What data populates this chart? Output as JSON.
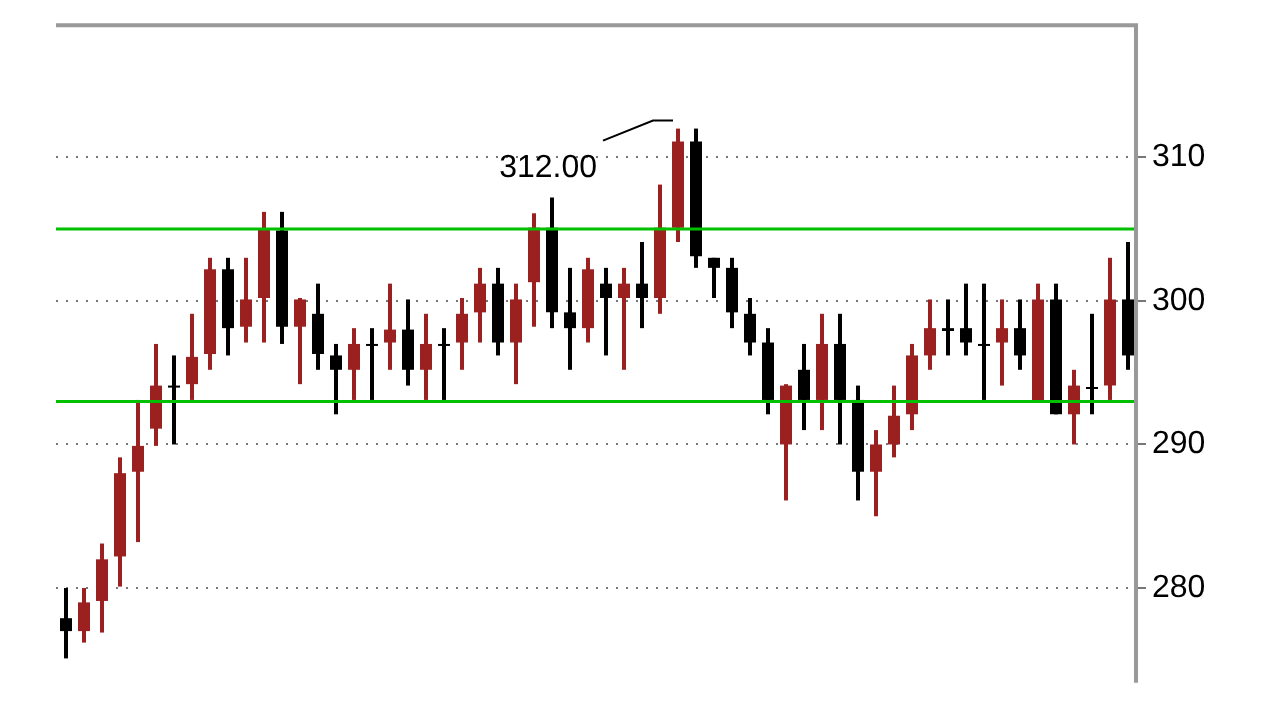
{
  "chart_data": {
    "type": "candlestick",
    "categories": [
      null,
      null,
      null,
      null,
      null,
      null,
      null,
      null,
      null,
      null,
      null,
      null,
      null,
      null,
      null,
      null,
      null,
      null,
      null,
      null,
      null,
      null,
      null,
      null,
      null,
      null,
      null,
      null,
      null,
      null,
      null,
      null,
      null,
      null,
      null,
      null,
      null,
      null,
      null,
      null,
      null,
      null,
      null,
      null,
      null,
      null,
      null,
      null,
      null,
      null,
      null,
      null,
      null,
      null,
      null,
      null,
      null,
      null,
      null,
      null
    ],
    "ohlc": [
      [
        277.9,
        280.0,
        275.1,
        277.0
      ],
      [
        277.0,
        280.0,
        276.2,
        279.0
      ],
      [
        279.1,
        283.1,
        276.9,
        282.0
      ],
      [
        282.2,
        289.1,
        280.1,
        288.0
      ],
      [
        288.1,
        293.1,
        283.2,
        289.9
      ],
      [
        291.1,
        297.0,
        289.9,
        294.1
      ],
      [
        294.1,
        296.2,
        290.0,
        294.0
      ],
      [
        294.2,
        299.1,
        293.1,
        296.1
      ],
      [
        296.3,
        303.0,
        295.2,
        302.2
      ],
      [
        302.2,
        303.0,
        296.2,
        298.1
      ],
      [
        298.2,
        303.0,
        297.1,
        300.1
      ],
      [
        300.2,
        306.2,
        297.1,
        305.0
      ],
      [
        304.9,
        306.2,
        297.0,
        298.2
      ],
      [
        298.2,
        300.2,
        294.2,
        300.1
      ],
      [
        299.1,
        301.2,
        295.2,
        296.3
      ],
      [
        296.2,
        297.0,
        292.1,
        295.2
      ],
      [
        295.2,
        298.1,
        293.1,
        297.0
      ],
      [
        297.0,
        298.1,
        293.1,
        296.9
      ],
      [
        297.1,
        301.2,
        295.2,
        298.0
      ],
      [
        298.0,
        300.1,
        294.1,
        295.2
      ],
      [
        295.2,
        299.1,
        293.1,
        297.0
      ],
      [
        297.0,
        298.1,
        293.1,
        296.9
      ],
      [
        297.1,
        300.2,
        295.2,
        299.1
      ],
      [
        299.2,
        302.3,
        297.1,
        301.2
      ],
      [
        301.2,
        302.3,
        296.2,
        297.1
      ],
      [
        297.1,
        301.2,
        294.2,
        300.1
      ],
      [
        301.3,
        306.1,
        298.2,
        305.1
      ],
      [
        305.1,
        307.2,
        298.1,
        299.2
      ],
      [
        299.2,
        302.3,
        295.2,
        298.1
      ],
      [
        298.1,
        303.0,
        297.1,
        302.2
      ],
      [
        301.2,
        302.3,
        296.2,
        300.2
      ],
      [
        300.2,
        302.3,
        295.2,
        301.2
      ],
      [
        301.2,
        304.1,
        298.1,
        300.2
      ],
      [
        300.2,
        308.1,
        299.1,
        305.1
      ],
      [
        305.1,
        312.0,
        304.1,
        311.1
      ],
      [
        311.1,
        312.0,
        302.3,
        303.1
      ],
      [
        303.0,
        303.0,
        300.2,
        302.3
      ],
      [
        302.3,
        303.0,
        298.1,
        299.2
      ],
      [
        299.1,
        300.2,
        296.2,
        297.1
      ],
      [
        297.1,
        298.1,
        292.1,
        293.1
      ],
      [
        290.0,
        294.2,
        286.1,
        294.1
      ],
      [
        295.2,
        297.0,
        291.0,
        293.1
      ],
      [
        293.1,
        299.1,
        291.0,
        297.0
      ],
      [
        297.0,
        299.1,
        290.0,
        293.1
      ],
      [
        293.1,
        294.1,
        286.1,
        288.1
      ],
      [
        288.1,
        291.0,
        285.0,
        290.0
      ],
      [
        290.0,
        294.1,
        289.1,
        292.0
      ],
      [
        292.1,
        297.0,
        291.0,
        296.2
      ],
      [
        296.2,
        300.1,
        295.2,
        298.1
      ],
      [
        298.1,
        300.1,
        296.2,
        297.9
      ],
      [
        298.1,
        301.2,
        296.2,
        297.1
      ],
      [
        297.0,
        301.2,
        293.1,
        296.9
      ],
      [
        297.1,
        300.1,
        294.1,
        298.1
      ],
      [
        298.1,
        300.1,
        295.2,
        296.2
      ],
      [
        293.1,
        301.2,
        293.1,
        300.1
      ],
      [
        300.1,
        301.2,
        292.1,
        292.1
      ],
      [
        292.1,
        295.2,
        290.0,
        294.1
      ],
      [
        294.0,
        299.1,
        292.1,
        293.9
      ],
      [
        294.1,
        303.0,
        293.1,
        300.1
      ],
      [
        300.1,
        304.1,
        295.2,
        296.2
      ]
    ],
    "colors": [
      "#000000",
      "#9b2020",
      "#9b2020",
      "#9b2020",
      "#9b2020",
      "#9b2020",
      "#000000",
      "#9b2020",
      "#9b2020",
      "#000000",
      "#9b2020",
      "#9b2020",
      "#000000",
      "#9b2020",
      "#000000",
      "#000000",
      "#9b2020",
      "#000000",
      "#9b2020",
      "#000000",
      "#9b2020",
      "#000000",
      "#9b2020",
      "#9b2020",
      "#000000",
      "#9b2020",
      "#9b2020",
      "#000000",
      "#000000",
      "#9b2020",
      "#000000",
      "#9b2020",
      "#000000",
      "#9b2020",
      "#9b2020",
      "#000000",
      "#000000",
      "#000000",
      "#000000",
      "#000000",
      "#9b2020",
      "#000000",
      "#9b2020",
      "#000000",
      "#000000",
      "#9b2020",
      "#9b2020",
      "#9b2020",
      "#9b2020",
      "#000000",
      "#000000",
      "#000000",
      "#9b2020",
      "#000000",
      "#9b2020",
      "#000000",
      "#9b2020",
      "#000000",
      "#9b2020",
      "#000000"
    ],
    "ylim": [
      273.4,
      319.2
    ],
    "yticks": [
      280,
      290,
      300,
      310
    ],
    "grid": "y",
    "tick_labels": "y",
    "ref_lines": [
      {
        "axis": "y",
        "value": 305,
        "color": "#00c000"
      },
      {
        "axis": "y",
        "value": 293,
        "color": "#00c000"
      }
    ],
    "annotations": [
      "312.00"
    ]
  }
}
